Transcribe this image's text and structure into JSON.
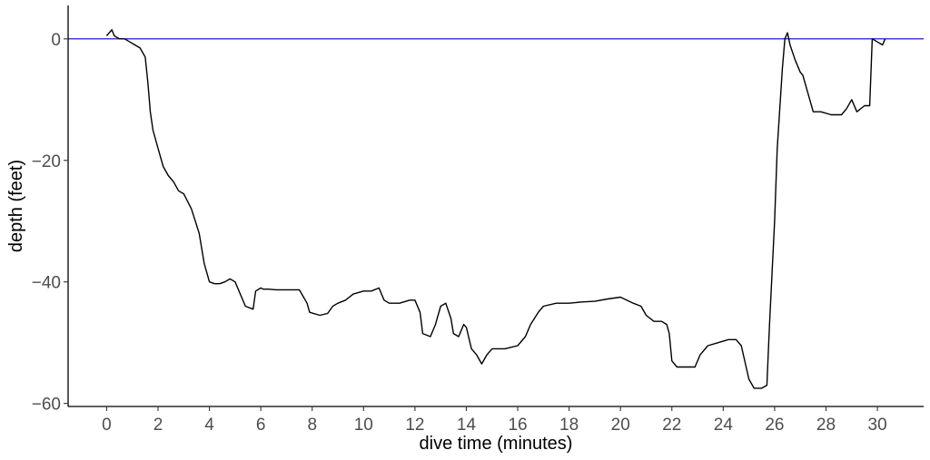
{
  "chart_data": {
    "type": "line",
    "title": "",
    "xlabel": "dive time (minutes)",
    "ylabel": "depth (feet)",
    "xlim": [
      -1.5,
      31.8
    ],
    "ylim": [
      -60.5,
      5.5
    ],
    "x_ticks": [
      0,
      2,
      4,
      6,
      8,
      10,
      12,
      14,
      16,
      18,
      20,
      22,
      24,
      26,
      28,
      30
    ],
    "y_ticks": [
      0,
      -20,
      -40,
      -60
    ],
    "x_tick_labels": [
      "0",
      "2",
      "4",
      "6",
      "8",
      "10",
      "12",
      "14",
      "16",
      "18",
      "20",
      "22",
      "24",
      "26",
      "28",
      "30"
    ],
    "y_tick_labels": [
      "0",
      "−20",
      "−40",
      "−60"
    ],
    "grid": false,
    "reference_line": {
      "y": 0,
      "color": "#0000cc"
    },
    "line_color": "#000000",
    "series": [
      {
        "x": [
          0,
          0.2,
          0.3,
          0.5,
          0.7,
          0.9,
          1.1,
          1.3,
          1.5,
          1.6,
          1.7,
          1.8,
          2.0,
          2.2,
          2.4,
          2.6,
          2.8,
          3.0,
          3.3,
          3.6,
          3.8,
          4.0,
          4.2,
          4.4,
          4.6,
          4.8,
          5.0,
          5.4,
          5.7,
          5.8,
          6.0,
          6.1,
          6.3,
          6.6,
          7.0,
          7.5,
          7.8,
          7.9,
          8.3,
          8.6,
          8.8,
          9.0,
          9.3,
          9.6,
          10.0,
          10.3,
          10.6,
          10.8,
          11.0,
          11.4,
          11.8,
          12.0,
          12.2,
          12.3,
          12.6,
          12.8,
          13.0,
          13.2,
          13.4,
          13.5,
          13.7,
          13.9,
          14.0,
          14.2,
          14.4,
          14.6,
          14.8,
          15.0,
          15.5,
          16.0,
          16.3,
          16.5,
          16.8,
          17.0,
          17.5,
          18.0,
          18.5,
          19.0,
          19.5,
          20.0,
          20.5,
          20.8,
          21.0,
          21.3,
          21.6,
          21.8,
          21.9,
          22.0,
          22.2,
          22.6,
          22.9,
          23.1,
          23.4,
          23.8,
          24.2,
          24.5,
          24.7,
          25.0,
          25.2,
          25.5,
          25.7,
          25.8,
          26.0,
          26.1,
          26.3,
          26.4,
          26.5,
          26.6,
          26.8,
          27.0,
          27.1,
          27.3,
          27.5,
          27.8,
          28.2,
          28.6,
          28.8,
          29.0,
          29.2,
          29.5,
          29.7,
          29.8,
          30.0,
          30.2,
          30.3
        ],
        "y": [
          0.5,
          1.5,
          0.5,
          0.0,
          0.0,
          -0.5,
          -1.0,
          -1.5,
          -3.0,
          -7.0,
          -12.0,
          -15.0,
          -18.0,
          -21.0,
          -22.5,
          -23.5,
          -25.0,
          -25.5,
          -28.0,
          -32.0,
          -37.0,
          -40.0,
          -40.3,
          -40.3,
          -40.0,
          -39.5,
          -40.0,
          -44.0,
          -44.5,
          -41.5,
          -41.0,
          -41.2,
          -41.2,
          -41.3,
          -41.3,
          -41.3,
          -43.5,
          -45.0,
          -45.5,
          -45.2,
          -44.0,
          -43.5,
          -43.0,
          -42.0,
          -41.5,
          -41.5,
          -41.0,
          -43.0,
          -43.5,
          -43.5,
          -43.0,
          -43.0,
          -45.0,
          -48.5,
          -49.0,
          -47.0,
          -44.0,
          -43.5,
          -46.0,
          -48.5,
          -49.0,
          -47.0,
          -47.5,
          -51.0,
          -52.0,
          -53.5,
          -52.0,
          -51.0,
          -51.0,
          -50.5,
          -49.0,
          -47.0,
          -45.0,
          -44.0,
          -43.5,
          -43.5,
          -43.3,
          -43.2,
          -42.8,
          -42.5,
          -43.5,
          -44.0,
          -45.5,
          -46.5,
          -46.5,
          -47.0,
          -48.5,
          -53.0,
          -54.0,
          -54.0,
          -54.0,
          -52.0,
          -50.5,
          -50.0,
          -49.5,
          -49.5,
          -50.5,
          -56.0,
          -57.5,
          -57.5,
          -57.0,
          -47.0,
          -30.0,
          -18.0,
          -5.0,
          0.0,
          1.0,
          -1.0,
          -3.5,
          -5.5,
          -6.0,
          -9.0,
          -12.0,
          -12.0,
          -12.5,
          -12.5,
          -11.5,
          -10.0,
          -12.0,
          -11.0,
          -11.0,
          0.0,
          -0.5,
          -1.0,
          0.0
        ]
      }
    ]
  }
}
